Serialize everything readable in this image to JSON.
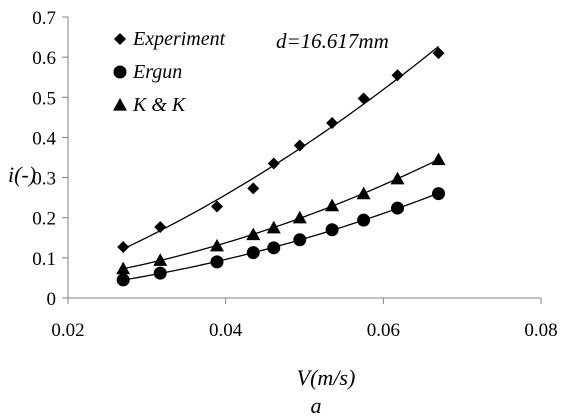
{
  "chart_data": {
    "type": "scatter",
    "xlabel": "V(m/s)",
    "ylabel": "i(-)",
    "caption": "a",
    "annotation": "d=16.617mm",
    "xlim": [
      0.02,
      0.08
    ],
    "ylim": [
      0,
      0.7
    ],
    "x_ticks": [
      0.02,
      0.04,
      0.06,
      0.08
    ],
    "x_tick_labels": [
      "0.02",
      "0.04",
      "0.06",
      "0.08"
    ],
    "y_ticks": [
      0,
      0.1,
      0.2,
      0.3,
      0.4,
      0.5,
      0.6,
      0.7
    ],
    "y_tick_labels": [
      "0",
      "0.1",
      "0.2",
      "0.3",
      "0.4",
      "0.5",
      "0.6",
      "0.7"
    ],
    "grid": false,
    "legend_position": "top-left",
    "x": [
      0.027,
      0.0317,
      0.0389,
      0.0435,
      0.0461,
      0.0494,
      0.0535,
      0.0575,
      0.0618,
      0.067
    ],
    "series": [
      {
        "name": "Experiment",
        "marker": "diamond",
        "values": [
          0.127,
          0.177,
          0.228,
          0.273,
          0.335,
          0.38,
          0.436,
          0.497,
          0.555,
          0.61
        ],
        "trendline": true
      },
      {
        "name": "Ergun",
        "marker": "circle",
        "values": [
          0.045,
          0.062,
          0.09,
          0.113,
          0.125,
          0.145,
          0.17,
          0.194,
          0.224,
          0.26
        ],
        "trendline": true
      },
      {
        "name": "K & K",
        "marker": "triangle",
        "values": [
          0.073,
          0.094,
          0.13,
          0.158,
          0.175,
          0.2,
          0.23,
          0.26,
          0.297,
          0.345
        ],
        "trendline": true
      }
    ],
    "colors": {
      "marker": "#000000",
      "line": "#000000"
    }
  }
}
